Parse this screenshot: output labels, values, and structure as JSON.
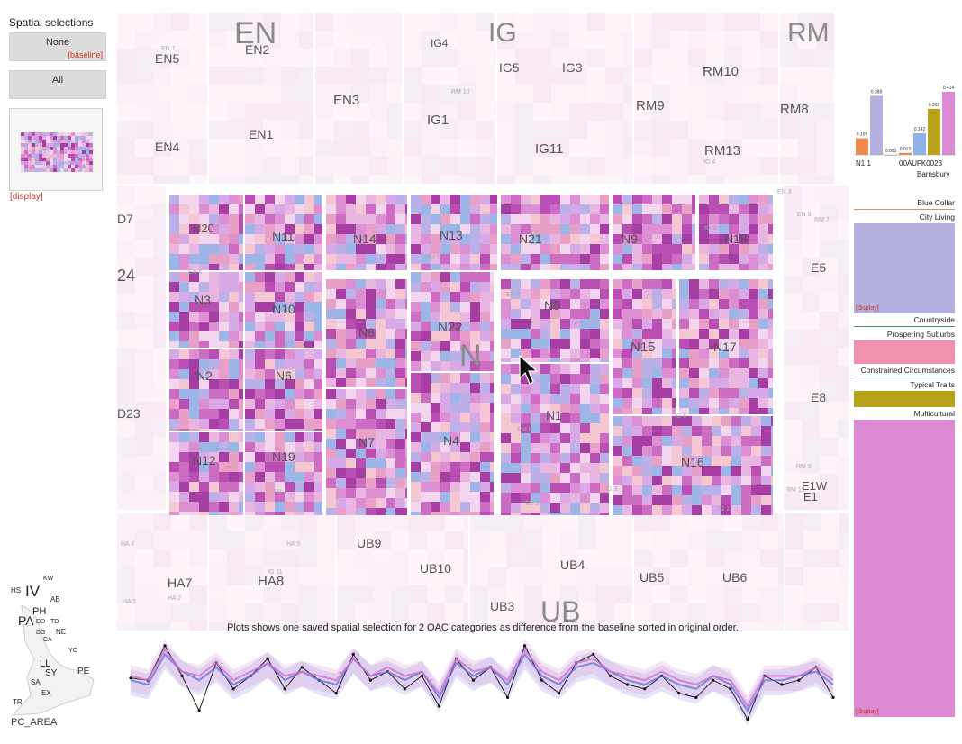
{
  "left": {
    "title": "Spatial selections",
    "none_label": "None",
    "baseline_tag": "[baseline]",
    "all_label": "All",
    "display_tag": "[display]"
  },
  "map": {
    "regions": [
      {
        "id": "EN",
        "labels": [
          "EN",
          "EN5",
          "EN2",
          "EN3",
          "EN4",
          "EN1",
          "EN 2",
          "EN 7",
          "EN 6",
          "EN 9",
          "EN 4",
          "EN 1",
          "EN 3"
        ]
      },
      {
        "id": "IG",
        "labels": [
          "IG",
          "IG4",
          "IG5",
          "IG3",
          "IG1",
          "IG11",
          "IG 3",
          "IG 4",
          "IG 6",
          "IG 1",
          "IG 11",
          "IG 2"
        ]
      },
      {
        "id": "RM",
        "labels": [
          "RM",
          "RM10",
          "RM9",
          "RM8",
          "RM13",
          "RM 9",
          "RM 7",
          "RM 10",
          "RM 1",
          "RM 6",
          "RM 15"
        ]
      },
      {
        "id": "N",
        "labels": [
          "N",
          "N20",
          "N11",
          "N14",
          "N13",
          "N21",
          "N9",
          "N18",
          "N3",
          "N10",
          "N8",
          "N22",
          "N5",
          "N15",
          "N17",
          "N2",
          "N6",
          "N1",
          "N12",
          "N19",
          "N7",
          "N4",
          "N16"
        ]
      },
      {
        "id": "E",
        "labels": [
          "E5",
          "E8",
          "E1W",
          "E1"
        ]
      },
      {
        "id": "UB",
        "labels": [
          "UB",
          "UB9",
          "UB10",
          "UB4",
          "UB5",
          "UB6",
          "UB3"
        ]
      },
      {
        "id": "HA",
        "labels": [
          "HA7",
          "HA8",
          "HA 4",
          "HA 5",
          "HA 9",
          "HA 2"
        ]
      },
      {
        "id": "W",
        "labels": [
          "D7",
          "24",
          "D23"
        ]
      }
    ],
    "cursor_icon": "arrow-cursor-icon"
  },
  "caption": "Plots shows one saved spatial selection for 2 OAC categories as difference from the baseline sorted in original order.",
  "mini_map": {
    "labels": [
      "KW",
      "HS",
      "IV",
      "AB",
      "PH",
      "PA",
      "DD",
      "TD",
      "DG",
      "CA",
      "NE",
      "YO",
      "LL",
      "SY",
      "PE",
      "SA",
      "EX",
      "TR"
    ],
    "title": "PC_AREA"
  },
  "right": {
    "bar_chart": {
      "values": [
        0.109,
        0.388,
        0.0,
        0.013,
        0.142,
        0.302,
        0.414
      ],
      "value_labels": [
        "0.109",
        "0.388",
        "0.000",
        "0.013",
        "0.142",
        "0.302",
        "0.414"
      ],
      "colors": [
        "#f08a4b",
        "#b4b0e0",
        "#7f7f7f",
        "#e88a5a",
        "#8fb0e8",
        "#b8a21a",
        "#d98ad2"
      ],
      "labels": [
        "N1 1",
        "00AUFK0023",
        "Barnsbury"
      ]
    },
    "categories": [
      {
        "name": "Blue Collar",
        "color": "#f08a4b",
        "share": 0.0
      },
      {
        "name": "City Living",
        "color": "#b4b0e0",
        "share": 0.12
      },
      {
        "name": "Countryside",
        "color": "#3a9a55",
        "share": 0.0
      },
      {
        "name": "Prospering Suburbs",
        "color": "#f090ad",
        "share": 0.03
      },
      {
        "name": "Constrained Circumstances",
        "color": "#8fb0e8",
        "share": 0.0
      },
      {
        "name": "Typical Traits",
        "color": "#b8a21a",
        "share": 0.024
      },
      {
        "name": "Multicultural",
        "color": "#dc8ad4",
        "share": 0.5
      }
    ],
    "display_tag": "[display]"
  },
  "line_plot": {
    "series": [
      {
        "name": "selection",
        "color": "#222222",
        "values": [
          0.15,
          0.1,
          0.9,
          0.2,
          -0.6,
          0.5,
          -0.1,
          0.2,
          0.6,
          -0.1,
          0.4,
          0.1,
          -0.2,
          0.7,
          0.1,
          0.3,
          -0.1,
          0.2,
          -0.5,
          0.6,
          0.1,
          0.4,
          -0.3,
          0.9,
          0.1,
          -0.2,
          0.5,
          0.7,
          0.2,
          0.0,
          -0.1,
          0.2,
          -0.2,
          -0.3,
          0.1,
          -0.1,
          -0.8,
          0.2,
          0.0,
          0.1,
          0.4,
          -0.3
        ]
      },
      {
        "name": "cat-a",
        "color": "#6a70d8",
        "values": [
          0.1,
          0.0,
          0.7,
          0.3,
          0.1,
          0.4,
          0.0,
          0.2,
          0.5,
          0.1,
          0.3,
          0.1,
          0.0,
          0.6,
          0.2,
          0.3,
          0.1,
          0.3,
          -0.3,
          0.5,
          0.2,
          0.4,
          0.0,
          0.7,
          0.2,
          0.0,
          0.4,
          0.5,
          0.3,
          0.1,
          0.0,
          0.2,
          0.0,
          -0.1,
          0.2,
          0.0,
          -0.6,
          0.1,
          0.1,
          0.2,
          0.3,
          0.0
        ]
      },
      {
        "name": "cat-b",
        "color": "#d070c8",
        "values": [
          0.2,
          0.1,
          0.8,
          0.3,
          0.2,
          0.5,
          0.1,
          0.3,
          0.5,
          0.2,
          0.3,
          0.2,
          0.1,
          0.6,
          0.2,
          0.4,
          0.2,
          0.3,
          -0.2,
          0.6,
          0.3,
          0.4,
          0.1,
          0.8,
          0.3,
          0.1,
          0.5,
          0.6,
          0.3,
          0.2,
          0.1,
          0.3,
          0.1,
          0.0,
          0.2,
          0.1,
          -0.5,
          0.2,
          0.2,
          0.2,
          0.4,
          0.1
        ]
      }
    ]
  }
}
